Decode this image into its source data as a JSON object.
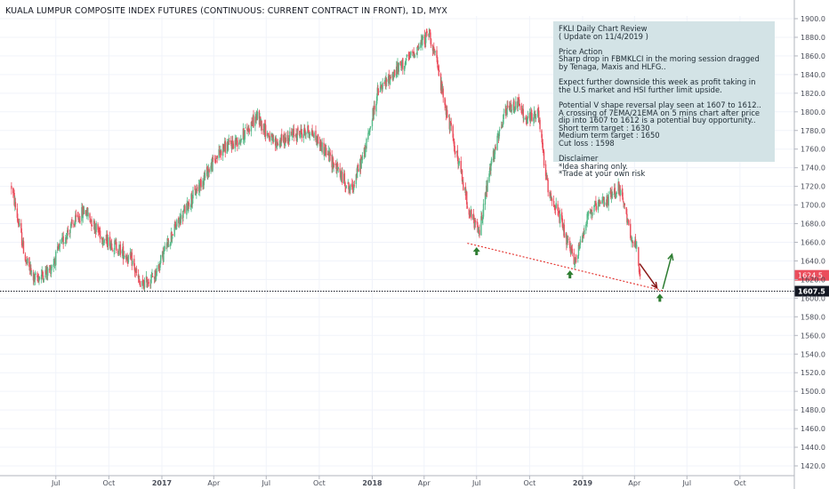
{
  "header": {
    "title": "KUALA LUMPUR COMPOSITE INDEX FUTURES (CONTINUOUS: CURRENT CONTRACT IN FRONT), 1D, MYX"
  },
  "note": {
    "lines": [
      "FKLI Daily Chart Review",
      "( Update on 11/4/2019 )",
      "",
      "Price Action",
      "Sharp drop in FBMKLCI in the moring session dragged",
      "by Tenaga, Maxis and HLFG..",
      "",
      "Expect further downside this week as profit taking in",
      "the U.S market and HSI further limit upside.",
      "",
      "Potential V shape reversal play seen at 1607 to 1612..",
      "A crossing of 7EMA/21EMA on 5 mins chart after price",
      "dip into 1607 to 1612 is a potential buy opportunity..",
      "Short term target : 1630",
      "Medium term target : 1650",
      "Cut loss : 1598",
      "",
      "Disclaimer",
      "*Idea sharing only.",
      "*Trade at your own risk"
    ]
  },
  "chart_data": {
    "type": "candlestick",
    "title": "KUALA LUMPUR COMPOSITE INDEX FUTURES (CONTINUOUS: CURRENT CONTRACT IN FRONT), 1D, MYX",
    "x_ticks": [
      "Jul",
      "Oct",
      "2017",
      "Apr",
      "Jul",
      "Oct",
      "2018",
      "Apr",
      "Jul",
      "Oct",
      "2019",
      "Apr",
      "Jul",
      "Oct"
    ],
    "y_ticks": [
      1420,
      1440,
      1460,
      1480,
      1500,
      1520,
      1540,
      1560,
      1580,
      1600,
      1620,
      1640,
      1660,
      1680,
      1700,
      1720,
      1740,
      1760,
      1780,
      1800,
      1820,
      1840,
      1860,
      1880,
      1900
    ],
    "y_range": [
      1410,
      1904
    ],
    "last_price": "1624.5",
    "horizontal_level": "1607.5",
    "up_color": "#53b987",
    "down_color": "#eb4d5c",
    "anchors": [
      [
        "2016-04-15",
        1720
      ],
      [
        "2016-05-10",
        1640
      ],
      [
        "2016-05-25",
        1620
      ],
      [
        "2016-06-20",
        1630
      ],
      [
        "2016-07-20",
        1670
      ],
      [
        "2016-08-20",
        1695
      ],
      [
        "2016-09-20",
        1665
      ],
      [
        "2016-10-15",
        1655
      ],
      [
        "2016-11-10",
        1640
      ],
      [
        "2016-11-25",
        1612
      ],
      [
        "2016-12-20",
        1625
      ],
      [
        "2017-01-15",
        1665
      ],
      [
        "2017-02-15",
        1700
      ],
      [
        "2017-03-15",
        1730
      ],
      [
        "2017-04-15",
        1760
      ],
      [
        "2017-05-15",
        1770
      ],
      [
        "2017-06-15",
        1795
      ],
      [
        "2017-07-15",
        1765
      ],
      [
        "2017-08-15",
        1775
      ],
      [
        "2017-09-15",
        1780
      ],
      [
        "2017-10-15",
        1755
      ],
      [
        "2017-11-10",
        1730
      ],
      [
        "2017-11-25",
        1715
      ],
      [
        "2017-12-20",
        1760
      ],
      [
        "2018-01-10",
        1820
      ],
      [
        "2018-02-05",
        1840
      ],
      [
        "2018-03-10",
        1860
      ],
      [
        "2018-04-10",
        1885
      ],
      [
        "2018-04-20",
        1860
      ],
      [
        "2018-05-10",
        1800
      ],
      [
        "2018-05-25",
        1760
      ],
      [
        "2018-06-20",
        1690
      ],
      [
        "2018-07-05",
        1670
      ],
      [
        "2018-07-25",
        1740
      ],
      [
        "2018-08-20",
        1800
      ],
      [
        "2018-09-10",
        1810
      ],
      [
        "2018-09-25",
        1790
      ],
      [
        "2018-10-15",
        1800
      ],
      [
        "2018-11-01",
        1720
      ],
      [
        "2018-11-20",
        1690
      ],
      [
        "2018-12-10",
        1650
      ],
      [
        "2018-12-20",
        1640
      ],
      [
        "2019-01-10",
        1690
      ],
      [
        "2019-02-01",
        1700
      ],
      [
        "2019-02-20",
        1710
      ],
      [
        "2019-03-05",
        1720
      ],
      [
        "2019-03-20",
        1680
      ],
      [
        "2019-04-05",
        1650
      ],
      [
        "2019-04-11",
        1624.5
      ]
    ],
    "annotations": {
      "support_trendline": [
        [
          "2018-06-15",
          1659
        ],
        [
          "2019-05-20",
          1608
        ]
      ],
      "buy_arrows": [
        [
          "2018-07-01",
          1650
        ],
        [
          "2018-12-10",
          1625
        ],
        [
          "2019-05-15",
          1600
        ]
      ],
      "projected_drop": [
        [
          "2019-04-10",
          1637
        ],
        [
          "2019-05-10",
          1611
        ]
      ],
      "projected_rise": [
        [
          "2019-05-20",
          1610
        ],
        [
          "2019-06-05",
          1647
        ]
      ]
    }
  }
}
